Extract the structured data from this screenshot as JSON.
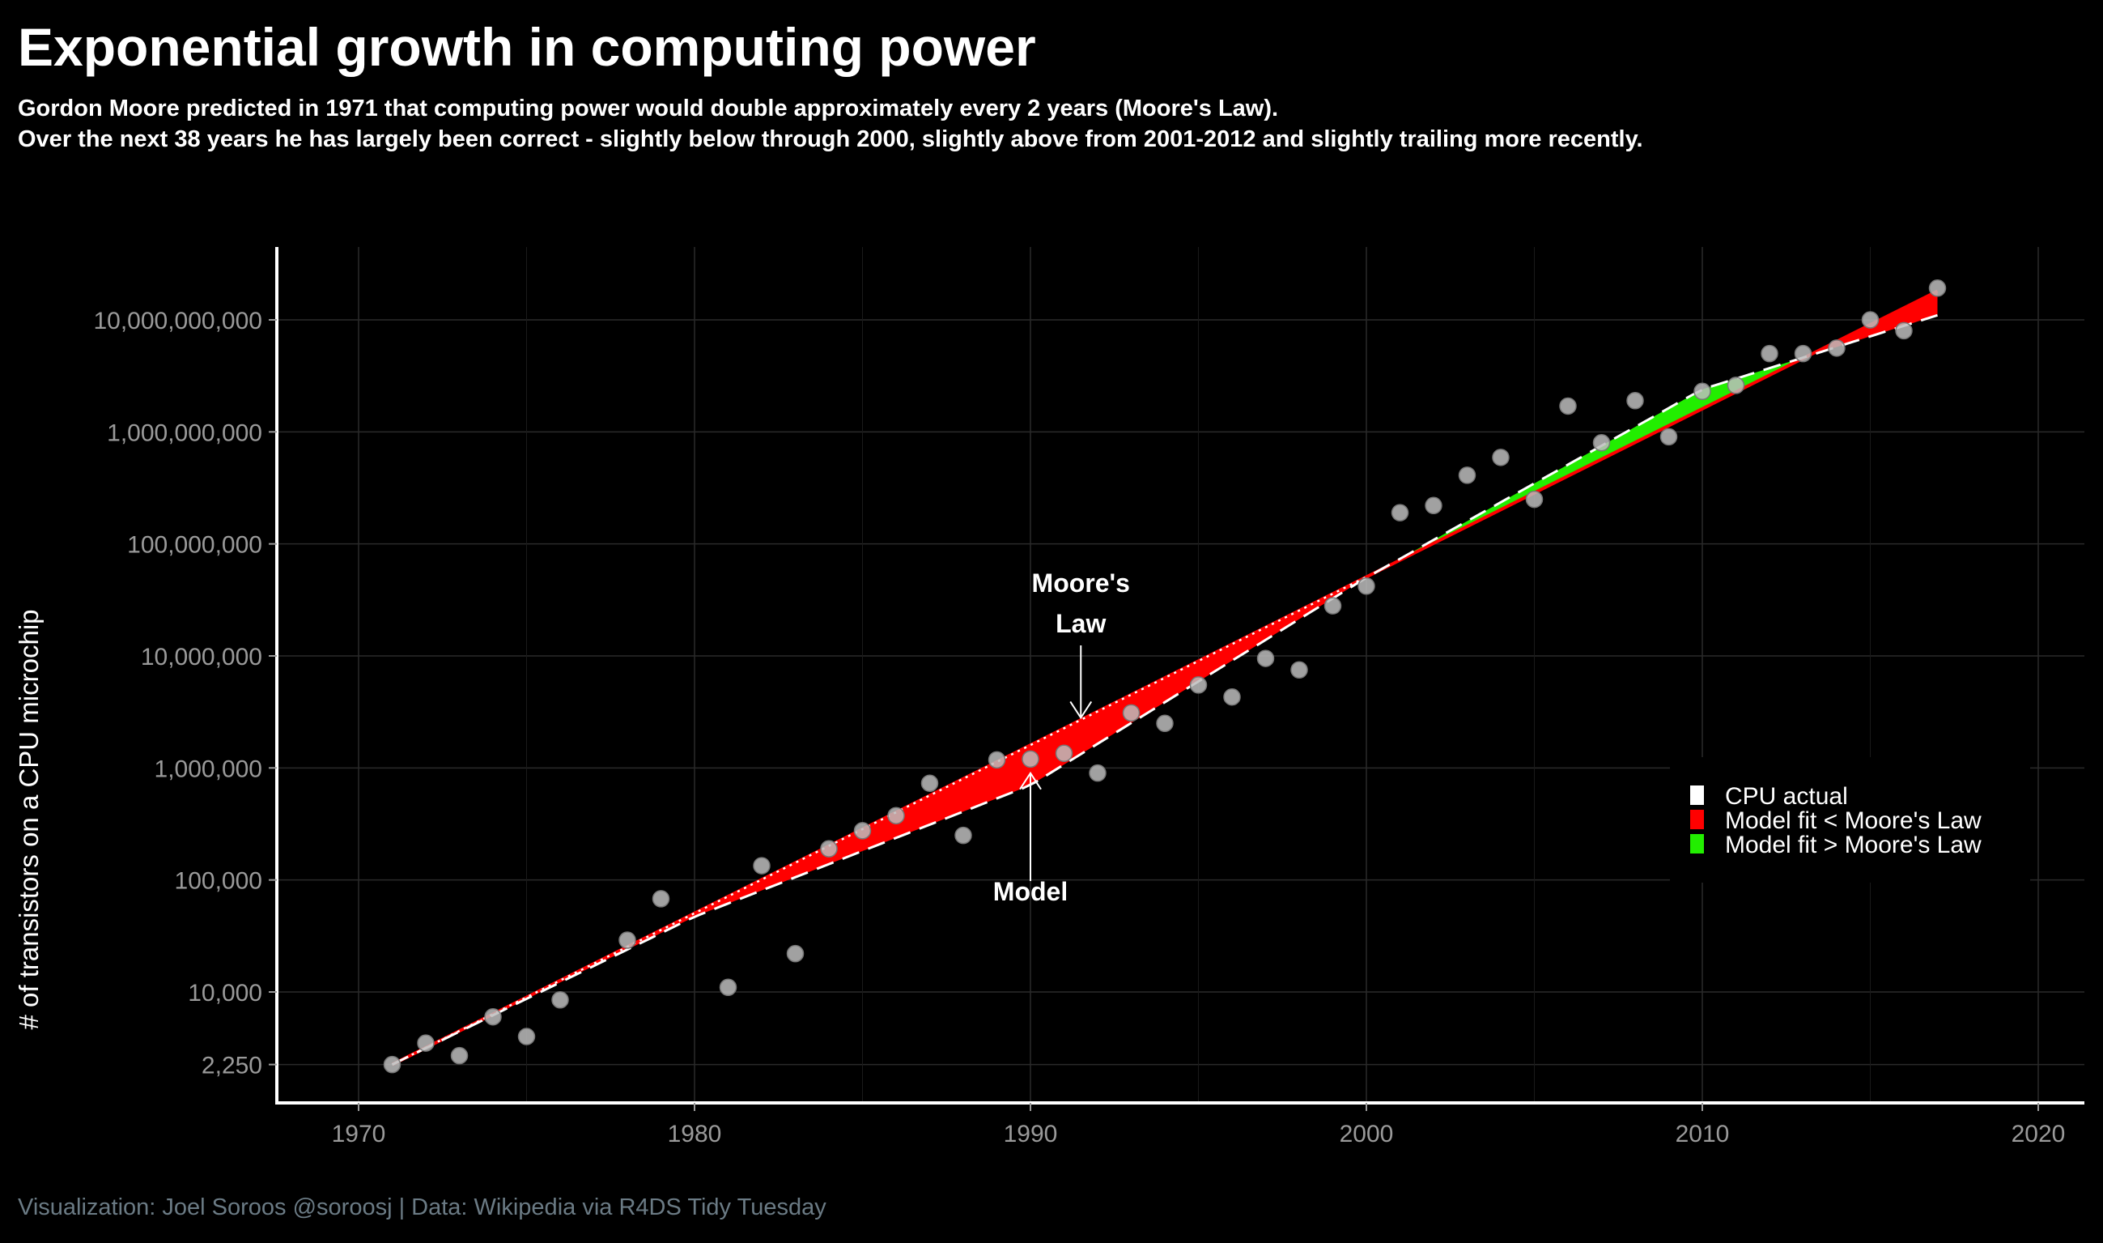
{
  "title": "Exponential growth in computing power",
  "subtitle_line1": "Gordon Moore predicted in 1971 that computing power would double approximately every 2 years (Moore's Law).",
  "subtitle_line2": "Over the next 38 years he has largely been correct - slightly below through 2000, slightly above from 2001-2012 and slightly trailing more recently.",
  "caption": "Visualization: Joel Soroos @soroosj  |  Data: Wikipedia via R4DS Tidy Tuesday",
  "colors": {
    "background": "#000000",
    "below": "#ff0000",
    "above": "#22ee00",
    "points": "#bdbdbd",
    "caption": "#6b7b85",
    "grid": "#2a2a2a"
  },
  "chart_data": {
    "type": "scatter",
    "title": "Exponential growth in computing power",
    "xlabel": "",
    "ylabel": "# of transistors on a CPU microchip",
    "y_scale": "log10",
    "xlim": [
      1967.6,
      2021.4
    ],
    "ylim": [
      1100,
      40000000000
    ],
    "x_ticks": [
      1970,
      1980,
      1990,
      2000,
      2010,
      2020
    ],
    "x_tick_labels": [
      "1970",
      "1980",
      "1990",
      "2000",
      "2010",
      "2020"
    ],
    "y_ticks": [
      2250,
      10000,
      100000,
      1000000,
      10000000,
      100000000,
      1000000000,
      10000000000
    ],
    "y_tick_labels": [
      "2,250",
      "10,000",
      "100,000",
      "1,000,000",
      "10,000,000",
      "100,000,000",
      "1,000,000,000",
      "10,000,000,000"
    ],
    "cpu_actual": {
      "name": "CPU actual",
      "x": [
        1971,
        1972,
        1973,
        1974,
        1975,
        1976,
        1978,
        1979,
        1981,
        1982,
        1983,
        1984,
        1985,
        1986,
        1987,
        1988,
        1989,
        1990,
        1991,
        1992,
        1993,
        1994,
        1995,
        1996,
        1997,
        1998,
        1999,
        2000,
        2001,
        2002,
        2003,
        2004,
        2005,
        2006,
        2007,
        2008,
        2009,
        2010,
        2011,
        2012,
        2013,
        2014,
        2015,
        2016,
        2017
      ],
      "y": [
        2250,
        3500,
        2700,
        6000,
        4000,
        8500,
        29000,
        68000,
        11000,
        134000,
        22000,
        190000,
        275000,
        375000,
        730000,
        250000,
        1180000,
        1200000,
        1350000,
        900000,
        3100000,
        2500000,
        5500000,
        4300000,
        9500000,
        7500000,
        28000000,
        42000000,
        190000000,
        220000000,
        410000000,
        592000000,
        250000000,
        1700000000,
        800000000,
        1900000000,
        904000000,
        2300000000,
        2600000000,
        5000000000,
        5000000000,
        5600000000,
        10000000000,
        8000000000,
        19200000000
      ]
    },
    "moores_law": {
      "name": "Moore's Law",
      "x": [
        1971,
        2017
      ],
      "y": [
        2250,
        18060000000
      ]
    },
    "model": {
      "name": "Model",
      "x": [
        1971,
        1980,
        1990,
        2000,
        2010,
        2017
      ],
      "y": [
        2250,
        47000,
        700000,
        50000000,
        2400000000,
        11000000000
      ]
    },
    "legend": {
      "position": "right",
      "items": [
        {
          "label": "CPU actual",
          "color": "#ffffff"
        },
        {
          "label": "Model fit < Moore's Law",
          "color": "#ff0000"
        },
        {
          "label": "Model fit > Moore's Law",
          "color": "#22ee00"
        }
      ]
    },
    "annotations": [
      {
        "text_line1": "Moore's",
        "text_line2": "Law",
        "x": 1991.5,
        "y": 2800000
      },
      {
        "text": "Model",
        "x": 1990,
        "y": 900000
      }
    ]
  }
}
